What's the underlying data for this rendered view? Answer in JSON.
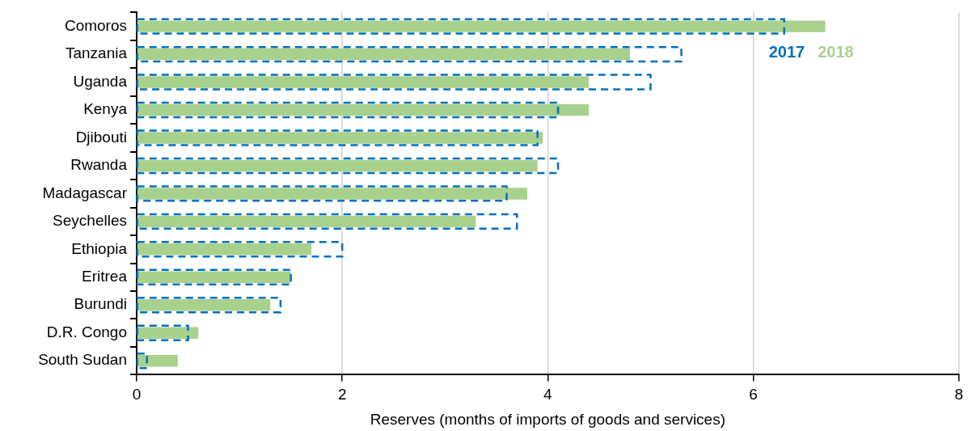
{
  "chart_data": {
    "type": "bar",
    "orientation": "horizontal",
    "xlabel": "Reserves (months of imports of goods and services)",
    "categories": [
      "Comoros",
      "Tanzania",
      "Uganda",
      "Kenya",
      "Djibouti",
      "Rwanda",
      "Madagascar",
      "Seychelles",
      "Ethiopia",
      "Eritrea",
      "Burundi",
      "D.R. Congo",
      "South Sudan"
    ],
    "series": [
      {
        "name": "2018",
        "color": "#a9d18e",
        "values": [
          6.7,
          4.8,
          4.4,
          4.4,
          3.95,
          3.9,
          3.8,
          3.3,
          1.7,
          1.5,
          1.3,
          0.6,
          0.4
        ]
      },
      {
        "name": "2017",
        "color": "#0070c0",
        "line_style": "dashed",
        "values": [
          6.3,
          5.3,
          5.0,
          4.1,
          3.9,
          4.1,
          3.6,
          3.7,
          2.0,
          1.5,
          1.4,
          0.5,
          0.1
        ]
      }
    ],
    "xlim": [
      0,
      8
    ],
    "xticks": [
      0,
      2,
      4,
      6,
      8
    ],
    "grid": "x",
    "legend": "top right"
  }
}
